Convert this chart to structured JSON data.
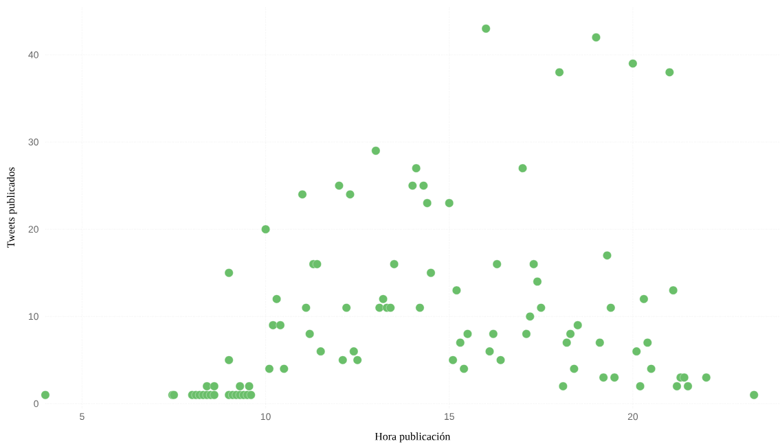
{
  "chart_data": {
    "type": "scatter",
    "xlabel": "Hora publicación",
    "ylabel": "Tweets publicados",
    "xlim": [
      4,
      24
    ],
    "ylim": [
      -0.5,
      45.5
    ],
    "xticks": [
      5,
      10,
      15,
      20
    ],
    "yticks": [
      0,
      10,
      20,
      30,
      40
    ],
    "grid": true,
    "marker": "circle",
    "series": [
      {
        "color": "#6abf6a",
        "x": [
          4.0,
          7.46,
          7.5,
          8.0,
          8.1,
          8.2,
          8.3,
          8.4,
          8.5,
          8.6,
          8.4,
          8.6,
          9.0,
          9.0,
          9.0,
          9.1,
          9.2,
          9.3,
          9.4,
          9.5,
          9.6,
          9.3,
          9.55,
          10.0,
          10.3,
          10.2,
          10.4,
          10.1,
          10.5,
          13.0,
          14.1,
          12.0,
          12.3,
          11.0,
          14.0,
          14.3,
          14.4,
          15.0,
          11.3,
          11.4,
          13.5,
          14.5,
          15.2,
          13.2,
          11.1,
          12.2,
          13.1,
          13.3,
          13.4,
          14.2,
          11.2,
          11.5,
          12.4,
          12.1,
          12.5,
          16.3,
          15.5,
          15.3,
          16.2,
          16.1,
          15.1,
          16.4,
          15.4,
          16.0,
          19.0,
          18.0,
          20.0,
          21.0,
          17.0,
          19.3,
          17.3,
          17.4,
          21.1,
          20.3,
          17.5,
          19.4,
          17.2,
          18.5,
          17.1,
          18.3,
          18.2,
          19.1,
          20.4,
          20.1,
          18.4,
          20.5,
          19.2,
          19.5,
          21.3,
          21.4,
          22.0,
          18.1,
          20.2,
          21.2,
          21.5,
          23.3
        ],
        "values": [
          1,
          1,
          1,
          1,
          1,
          1,
          1,
          1,
          1,
          1,
          2,
          2,
          15,
          5,
          1,
          1,
          1,
          1,
          1,
          1,
          1,
          2,
          2,
          20,
          12,
          9,
          9,
          4,
          4,
          29,
          27,
          25,
          24,
          24,
          25,
          25,
          23,
          23,
          16,
          16,
          16,
          15,
          13,
          12,
          11,
          11,
          11,
          11,
          11,
          11,
          8,
          6,
          6,
          5,
          5,
          16,
          8,
          7,
          8,
          6,
          5,
          5,
          4,
          43,
          42,
          38,
          39,
          38,
          27,
          17,
          16,
          14,
          13,
          12,
          11,
          11,
          10,
          9,
          8,
          8,
          7,
          7,
          7,
          6,
          4,
          4,
          3,
          3,
          3,
          3,
          3,
          2,
          2,
          2,
          2,
          1
        ]
      }
    ]
  }
}
